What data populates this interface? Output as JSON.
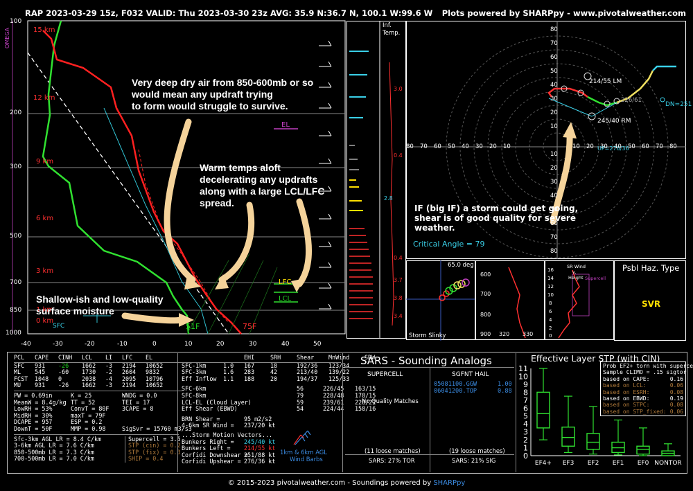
{
  "header": {
    "title": "RAP 2023-03-29 15z, F032  VALID: Thu 2023-03-30 23z  AVG: 35.9 N:36.7 N, 100.1 W:99.6 W",
    "credit": "Plots powered by SHARPpy - www.pivotalweather.com"
  },
  "footer": {
    "text": "© 2015-2023 pivotalweather.com - Soundings powered by ",
    "sharppy": "SHARPpy"
  },
  "skewt": {
    "omega_label": "OMEGA",
    "pressure_ticks": [
      "100",
      "200",
      "300",
      "500",
      "700",
      "850",
      "1000"
    ],
    "height_ticks": [
      "15 km",
      "12 km",
      "9 km",
      "6 km",
      "3 km",
      "1 km",
      "0 km"
    ],
    "temp_ticks": [
      "-40",
      "-30",
      "-20",
      "-10",
      "0",
      "10",
      "20",
      "30",
      "40",
      "50"
    ],
    "labels": {
      "el": "EL",
      "lfc": "LFC",
      "lcl": "LCL",
      "sfc": "SFC",
      "temp_sfc": "75F",
      "dew_sfc": "51F"
    },
    "annotations": [
      "Very deep dry air from 850-600mb or so",
      "would mean any updraft trying",
      "to form would struggle to survive.",
      "Warm temps aloft",
      "decelerating any updrafts",
      "along with a large LCL/LFC",
      "spread.",
      "Shallow-ish and low-quality",
      "surface moisture"
    ]
  },
  "inflow": {
    "title_1": "Inf.",
    "title_2": "Temp.",
    "values": [
      "3.0",
      "0.4",
      "2.8",
      "0.4",
      "3.7",
      "3.8",
      "3.4"
    ]
  },
  "hodograph": {
    "ticks_y": [
      "80",
      "70",
      "60",
      "50",
      "40",
      "30",
      "20",
      "10",
      "10",
      "20",
      "30",
      "40",
      "50",
      "60",
      "70",
      "80"
    ],
    "ticks_x": [
      "80",
      "70",
      "60",
      "50",
      "40",
      "30",
      "20",
      "10",
      "10",
      "20",
      "30",
      "40",
      "50",
      "60",
      "70",
      "80"
    ],
    "labels": {
      "lm": "214/55 LM",
      "rm": "245/40 RM",
      "dn": "DN=251",
      "mw": "226/61",
      "up": "UP=276/36"
    },
    "annotation": [
      "IF (big IF) a storm could get going,",
      "shear is of good quality for severe",
      "weather."
    ],
    "critical_angle": "Critical Angle = 79"
  },
  "slinky": {
    "angle": "65.0 deg",
    "label": "Storm Slinky",
    "ticks": [
      "600",
      "700",
      "800",
      "900"
    ],
    "xticks": [
      "320",
      "330"
    ]
  },
  "srwind": {
    "title": [
      "SR Wind",
      "v.",
      "Height"
    ],
    "ticks": [
      "16",
      "14",
      "12",
      "10",
      "8",
      "6",
      "4",
      "2",
      "0"
    ],
    "xticks": [
      "0",
      "20",
      "40",
      "60",
      "80"
    ],
    "super": "Supercell"
  },
  "haz": {
    "title": "Psbl Haz. Type",
    "value": "SVR"
  },
  "params": {
    "header": [
      "PCL",
      "CAPE",
      "CINH",
      "LCL",
      "LI",
      "LFC",
      "EL"
    ],
    "rows": [
      [
        "SFC",
        "931",
        "-26",
        "1662",
        "-3",
        "2194",
        "10652"
      ],
      [
        "ML",
        "545",
        "-60",
        "1730",
        "-2",
        "2604",
        "9832"
      ],
      [
        "FCST",
        "1048",
        "0",
        "2038",
        "-4",
        "2095",
        "10796"
      ],
      [
        "MU",
        "931",
        "-26",
        "1662",
        "-3",
        "2194",
        "10652"
      ]
    ],
    "col1": [
      "PW = 0.69in",
      "MeanW = 8.4g/kg",
      "LowRH = 53%",
      "MidRH = 30%",
      "DCAPE = 957",
      "DownT = 50F"
    ],
    "col2": [
      "K = 25",
      "TT = 52",
      "ConvT = 80F",
      "maxT = 79F",
      "ESP = 0.2",
      "MMP = 0.98"
    ],
    "col3": [
      "WNDG = 0.0",
      "TEI = 17",
      "3CAPE = 8",
      "",
      "",
      ""
    ],
    "sigsvr": "SigSvr = 15760 m3/s3",
    "lapse": [
      "Sfc-3km AGL LR = 8.4 C/km",
      "3-6km AGL LR = 7.6 C/km",
      "850-500mb LR = 7.3 C/km",
      "700-500mb LR = 7.0 C/km"
    ],
    "composite": [
      "Supercell = 3.5",
      "STP (cin) = 0.2",
      "STP (fix) = 0.3",
      "SHIP = 0.4"
    ]
  },
  "kinematics": {
    "header": [
      "EHI",
      "SRH",
      "Shear",
      "MnWind",
      "SRW"
    ],
    "rows": [
      [
        "SFC-1km",
        "1.0",
        "167",
        "18",
        "192/36",
        "123/34"
      ],
      [
        "SFC-3km",
        "1.6",
        "283",
        "42",
        "213/40",
        "139/22"
      ],
      [
        "Eff Inflow",
        "1.1",
        "188",
        "20",
        "194/37",
        "125/33"
      ],
      [
        "SFC-6km",
        "",
        "",
        "56",
        "226/45",
        "163/15"
      ],
      [
        "SFC-8km",
        "",
        "",
        "79",
        "228/48",
        "178/15"
      ],
      [
        "LCL-EL (Cloud Layer)",
        "",
        "",
        "59",
        "239/61",
        "228/22"
      ],
      [
        "Eff Shear (EBWD)",
        "",
        "",
        "54",
        "224/44",
        "158/16"
      ]
    ],
    "brn": [
      "BRN Shear =",
      "95 m2/s2"
    ],
    "sr46": [
      "4-6km SR Wind =",
      "237/20 kt"
    ],
    "motion_title": "...Storm Motion Vectors...",
    "motion": [
      [
        "Bunkers Right =",
        "245/40 kt"
      ],
      [
        "Bunkers Left =",
        "214/55 kt"
      ],
      [
        "Corfidi Downshear =",
        "251/88 kt"
      ],
      [
        "Corfidi Upshear =",
        "276/36 kt"
      ]
    ],
    "barbs_label": [
      "1km & 6km AGL",
      "Wind Barbs"
    ]
  },
  "sars": {
    "title": "SARS - Sounding Analogs",
    "supercell": {
      "title": "SUPERCELL",
      "body": "No Quality Matches",
      "loose": "(11 loose matches)",
      "stat": "SARS: 27% TOR"
    },
    "hail": {
      "title": "SGFNT HAIL",
      "matches": [
        [
          "05081100.GGW",
          "1.00"
        ],
        [
          "06041200.TOP",
          "0.88"
        ]
      ],
      "loose": "(19 loose matches)",
      "stat": "SARS: 21% SIG"
    }
  },
  "stp": {
    "title": "Effective Layer STP (with CIN)",
    "yticks": [
      "11",
      "10",
      "9",
      "8",
      "7",
      "6",
      "5",
      "4",
      "3",
      "2",
      "1",
      "0"
    ],
    "categories": [
      "EF4+",
      "EF3",
      "EF2",
      "EF1",
      "EF0",
      "NONTOR"
    ],
    "box_header": [
      "Prob EF2+ torn with supercell",
      "Sample CLIMO = .15 sigtor"
    ],
    "box_rows": [
      [
        "based on CAPE:",
        "0.16"
      ],
      [
        "based on LCL:",
        "0.06"
      ],
      [
        "based on ESRH:",
        "0.08"
      ],
      [
        "based on EBWD:",
        "0.19"
      ],
      [
        "based on STPC:",
        "0.08"
      ],
      [
        "based on STP_fixed:",
        "0.06"
      ]
    ]
  },
  "chart_data": {
    "type": "box",
    "title": "Effective Layer STP (with CIN)",
    "categories": [
      "EF4+",
      "EF3",
      "EF2",
      "EF1",
      "EF0",
      "NONTOR"
    ],
    "series": [
      {
        "whisker_low": [
          2,
          0.4,
          0.2,
          0.1,
          0,
          0
        ],
        "q1": [
          3.5,
          1.2,
          0.8,
          0.4,
          0.2,
          0
        ],
        "median": [
          5.3,
          2.3,
          1.7,
          1.0,
          0.8,
          0.3
        ],
        "q3": [
          8.0,
          3.6,
          2.8,
          1.7,
          1.2,
          0.6
        ],
        "whisker_high": [
          11,
          7.5,
          6.2,
          4.5,
          3.5,
          1.5
        ]
      }
    ],
    "ylim": [
      0,
      11
    ]
  }
}
